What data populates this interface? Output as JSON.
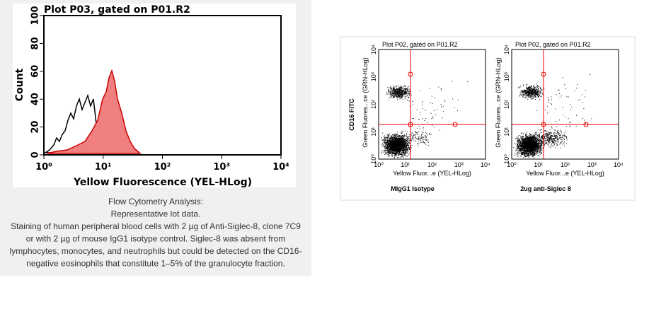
{
  "histogram": {
    "title": "Plot P03, gated on P01.R2",
    "y_label": "Count",
    "x_label": "Yellow Fluorescence (YEL-HLog)",
    "yticks": [
      "0",
      "20",
      "40",
      "60",
      "80",
      "100"
    ],
    "xticks": [
      "10⁰",
      "10¹",
      "10²",
      "10³",
      "10⁴"
    ]
  },
  "caption": [
    "Flow Cytometry Analysis:",
    "Representative lot data.",
    "Staining of human peripheral blood cells with 2 µg of Anti-Siglec-8, clone 7C9",
    "or with 2 µg of mouse IgG1 isotype control. Siglec-8 was absent from",
    "lymphocytes, monocytes, and neutrophils but could be detected on the CD16-",
    "negative eosinophils that constitute 1–5% of the granulocyte fraction."
  ],
  "dot_plots": {
    "y_axis_label": "CD16 FITC",
    "panels": [
      {
        "title": "Plot P02, gated on P01.R2",
        "y_label": "Green Fluores...ce (GRN-HLog)",
        "x_label": "Yellow Fluor...e (YEL-HLog)",
        "xticks": [
          "10⁰",
          "10¹",
          "10²",
          "10³",
          "10⁴"
        ],
        "yticks": [
          "10⁰",
          "10¹",
          "10²",
          "10³",
          "10⁴"
        ],
        "caption": "MIgG1 Isotype"
      },
      {
        "title": "Plot P02, gated on P01.R2",
        "y_label": "Green Fluores...ce (GRN-HLog)",
        "x_label": "Yellow Fluor...e (YEL-HLog)",
        "xticks": [
          "10⁰",
          "10¹",
          "10²",
          "10³",
          "10⁴"
        ],
        "yticks": [
          "10⁰",
          "10¹",
          "10²",
          "10³",
          "10⁴"
        ],
        "caption": "2ug anti-Siglec 8"
      }
    ]
  }
}
